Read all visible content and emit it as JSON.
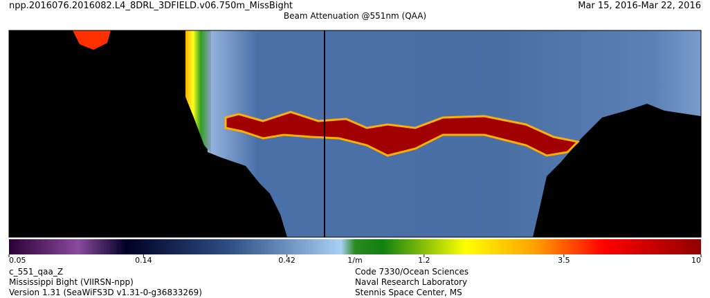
{
  "header": {
    "filename": "npp.2016076.2016082.L4_8DRL_3DFIELD.v06.750m_MissBight",
    "title": "Beam Attenuation @551nm (QAA)",
    "date_range": "Mar 15, 2016-Mar 22, 2016"
  },
  "colorbar": {
    "range": [
      0.05,
      10
    ],
    "log": true,
    "ticks": [
      0.05,
      0.14,
      0.42,
      1.2,
      3.5,
      10
    ],
    "unit": "1/m"
  },
  "footer": {
    "left": [
      "c_551_qaa_Z",
      "Mississippi Bight (VIIRSN-npp)",
      "Version 1.31 (SeaWiFS3D v1.31-0-g36833269)"
    ],
    "right": [
      "Code 7330/Ocean Sciences",
      "Naval Research Laboratory",
      "Stennis Space Center, MS"
    ]
  }
}
